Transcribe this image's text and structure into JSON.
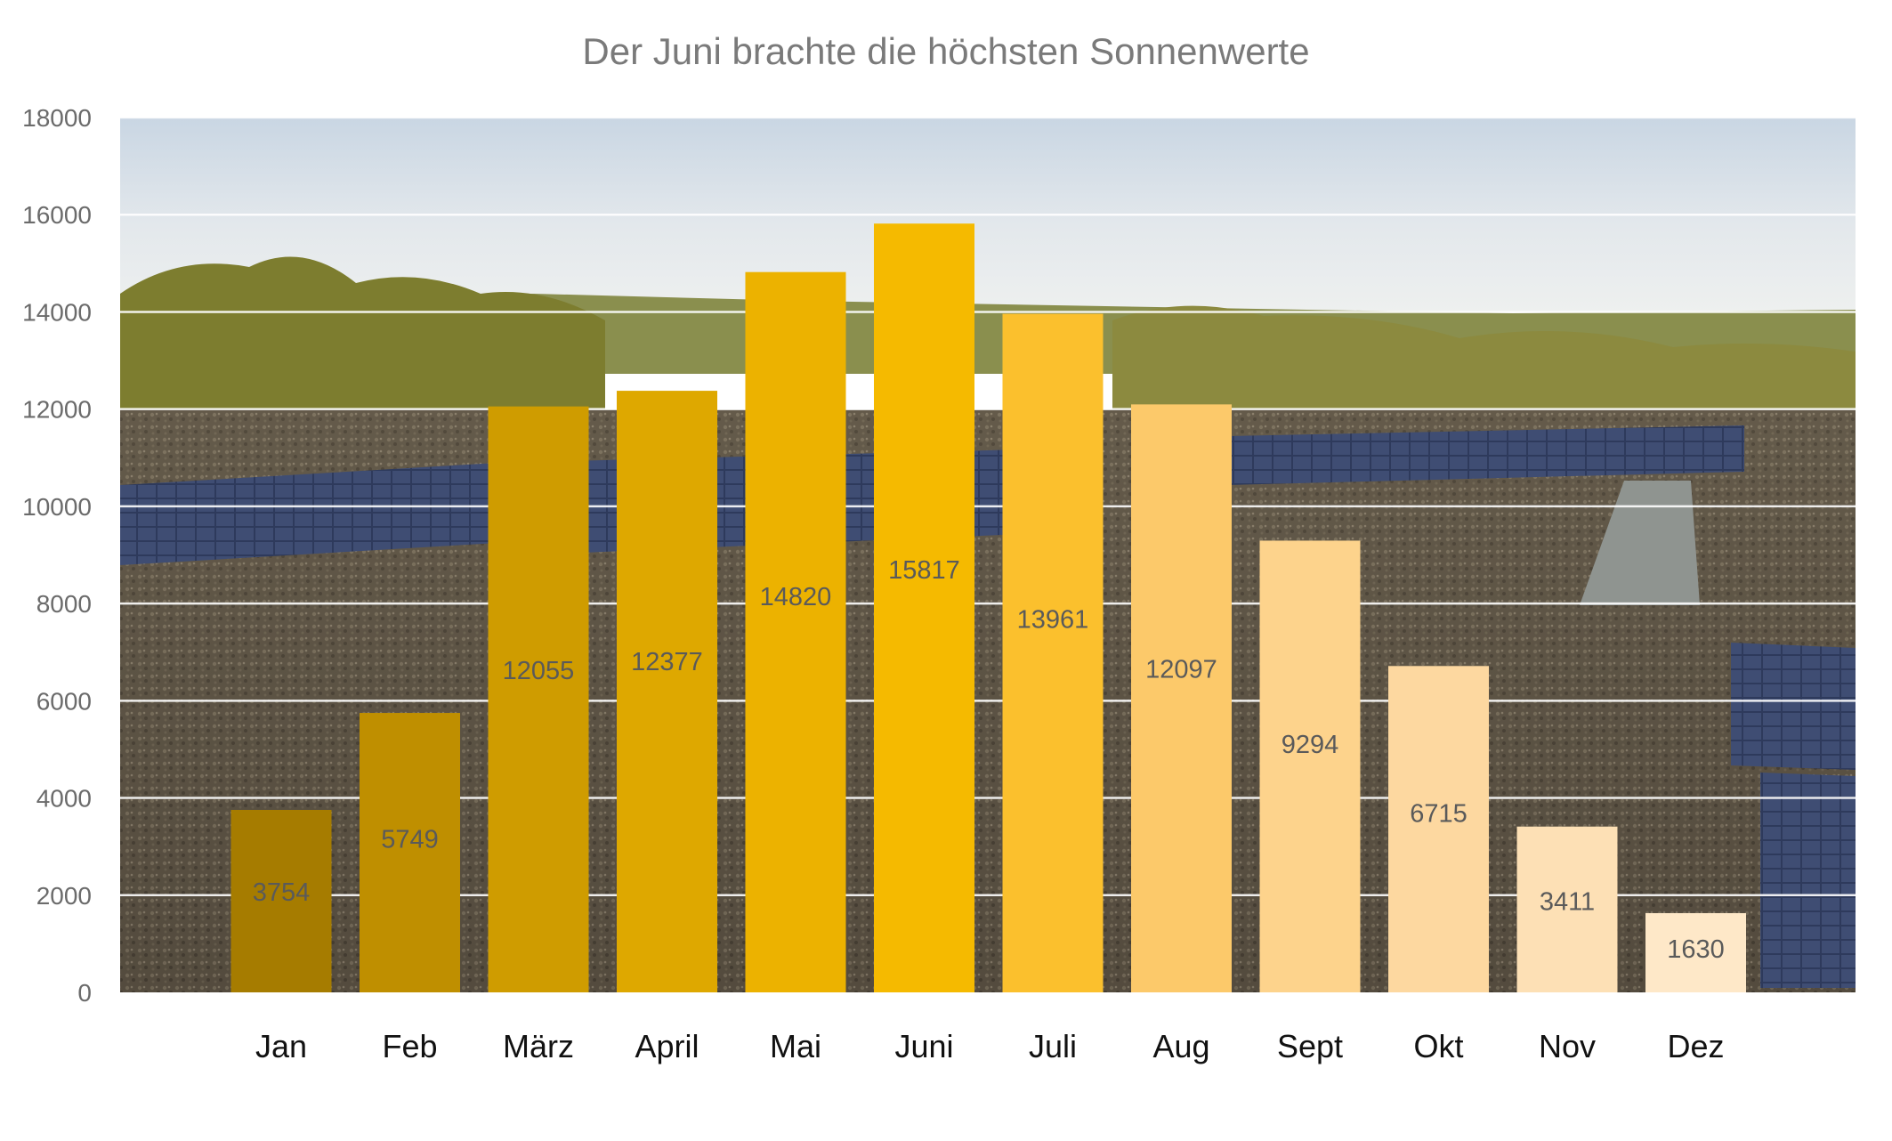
{
  "chart_data": {
    "type": "bar",
    "title": "Der Juni brachte die höchsten Sonnenwerte",
    "xlabel": "",
    "ylabel": "",
    "categories": [
      "Jan",
      "Feb",
      "März",
      "April",
      "Mai",
      "Juni",
      "Juli",
      "Aug",
      "Sept",
      "Okt",
      "Nov",
      "Dez"
    ],
    "values": [
      3754,
      5749,
      12055,
      12377,
      14820,
      15817,
      13961,
      12097,
      9294,
      6715,
      3411,
      1630
    ],
    "data_labels": [
      "3754",
      "5749",
      "12055",
      "12377",
      "14820",
      "15817",
      "13961",
      "12097",
      "9294",
      "6715",
      "3411",
      "1630"
    ],
    "bar_colors": [
      "#a67c00",
      "#bf8f00",
      "#cf9c00",
      "#dea800",
      "#ecb200",
      "#f5ba00",
      "#fbc02d",
      "#fcc96a",
      "#fdd38c",
      "#fdd8a0",
      "#fde0b5",
      "#fee8c8"
    ],
    "ylim": [
      0,
      18000
    ],
    "yticks": [
      "0",
      "2000",
      "4000",
      "6000",
      "8000",
      "10000",
      "12000",
      "14000",
      "16000",
      "18000"
    ],
    "grid": true,
    "legend": "none",
    "background": "photo of a flat roof with solar panels under a cloudy sky"
  }
}
